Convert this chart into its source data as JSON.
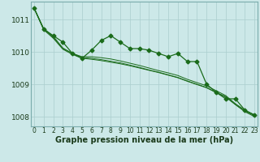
{
  "title": "Graphe pression niveau de la mer (hPa)",
  "bg_color": "#cce8e8",
  "grid_color": "#aacece",
  "line_color": "#1a6b1a",
  "x_labels": [
    "0",
    "1",
    "2",
    "3",
    "4",
    "5",
    "6",
    "7",
    "8",
    "9",
    "10",
    "11",
    "12",
    "13",
    "14",
    "15",
    "16",
    "17",
    "18",
    "19",
    "20",
    "21",
    "22",
    "23"
  ],
  "ylim": [
    1007.7,
    1011.55
  ],
  "yticks": [
    1008,
    1009,
    1010,
    1011
  ],
  "series_wavy": [
    1011.35,
    1010.7,
    1010.5,
    1010.3,
    1009.95,
    1009.8,
    1010.05,
    1010.35,
    1010.5,
    1010.3,
    1010.1,
    1010.1,
    1010.05,
    1009.95,
    1009.85,
    1009.95,
    1009.7,
    1009.7,
    1009.0,
    1008.75,
    1008.55,
    1008.55,
    1008.2,
    1008.05
  ],
  "series_straight": [
    [
      1011.35,
      1010.7,
      1010.45,
      1010.1,
      1009.95,
      1009.85,
      1009.85,
      1009.82,
      1009.78,
      1009.72,
      1009.65,
      1009.58,
      1009.5,
      1009.42,
      1009.35,
      1009.27,
      1009.15,
      1009.05,
      1008.95,
      1008.8,
      1008.65,
      1008.4,
      1008.2,
      1008.05
    ],
    [
      1011.35,
      1010.72,
      1010.48,
      1010.12,
      1009.95,
      1009.83,
      1009.8,
      1009.76,
      1009.71,
      1009.66,
      1009.59,
      1009.52,
      1009.44,
      1009.37,
      1009.29,
      1009.21,
      1009.1,
      1009.0,
      1008.9,
      1008.75,
      1008.62,
      1008.38,
      1008.17,
      1008.03
    ],
    [
      1011.35,
      1010.68,
      1010.42,
      1010.08,
      1009.92,
      1009.8,
      1009.77,
      1009.73,
      1009.68,
      1009.63,
      1009.57,
      1009.5,
      1009.43,
      1009.36,
      1009.28,
      1009.2,
      1009.09,
      1008.99,
      1008.89,
      1008.74,
      1008.6,
      1008.37,
      1008.15,
      1008.0
    ]
  ],
  "marker_size": 2.5,
  "marker_style": "D",
  "xlabel_fontsize": 5.5,
  "ylabel_fontsize": 6.5,
  "title_fontsize": 7,
  "linewidth_wavy": 0.9,
  "linewidth_straight": 0.7
}
